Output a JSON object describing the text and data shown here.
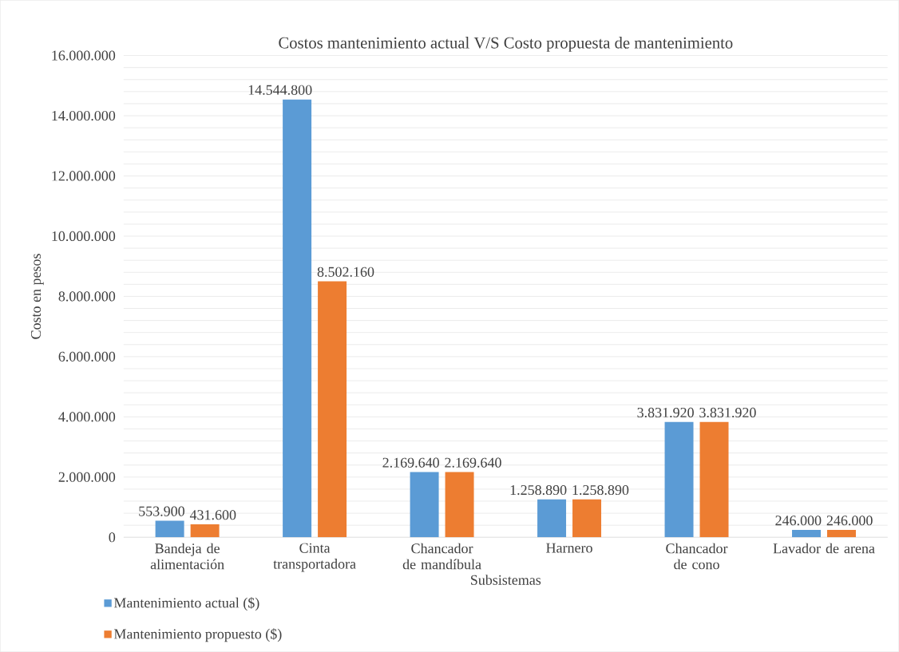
{
  "chart_data": {
    "type": "bar",
    "title": "Costos mantenimiento actual V/S Costo propuesta de mantenimiento",
    "xlabel": "Subsistemas",
    "ylabel": "Costo en pesos",
    "categories": [
      "Bandeja de alimentación",
      "Cinta transportadora",
      "Chancador de mandíbula",
      "Harnero",
      "Chancador de cono",
      "Lavador de arena"
    ],
    "series": [
      {
        "name": "Mantenimiento actual ($)",
        "color": "#5b9bd5",
        "values": [
          553900,
          14544800,
          2169640,
          1258890,
          3831920,
          246000
        ],
        "value_labels": [
          "553.900",
          "14.544.800",
          "2.169.640",
          "1.258.890",
          "3.831.920",
          "246.000"
        ]
      },
      {
        "name": "Mantenimiento propuesto  ($)",
        "color": "#ed7d31",
        "values": [
          431600,
          8502160,
          2169640,
          1258890,
          3831920,
          246000
        ],
        "value_labels": [
          "431.600",
          "8.502.160",
          "2.169.640",
          "1.258.890",
          "3.831.920",
          "246.000"
        ]
      }
    ],
    "ylim": [
      0,
      16000000
    ],
    "yticks": [
      {
        "value": 0,
        "label": "0"
      },
      {
        "value": 400000,
        "label": null
      },
      {
        "value": 800000,
        "label": null
      },
      {
        "value": 1200000,
        "label": null
      },
      {
        "value": 1600000,
        "label": null
      },
      {
        "value": 2000000,
        "label": "2.000.000"
      },
      {
        "value": 2400000,
        "label": null
      },
      {
        "value": 2800000,
        "label": null
      },
      {
        "value": 3200000,
        "label": null
      },
      {
        "value": 3600000,
        "label": null
      },
      {
        "value": 4000000,
        "label": "4.000.000"
      },
      {
        "value": 4400000,
        "label": null
      },
      {
        "value": 4800000,
        "label": null
      },
      {
        "value": 5200000,
        "label": null
      },
      {
        "value": 5600000,
        "label": null
      },
      {
        "value": 6000000,
        "label": "6.000.000"
      },
      {
        "value": 6400000,
        "label": null
      },
      {
        "value": 6800000,
        "label": null
      },
      {
        "value": 7200000,
        "label": null
      },
      {
        "value": 7600000,
        "label": null
      },
      {
        "value": 8000000,
        "label": "8.000.000"
      },
      {
        "value": 8400000,
        "label": null
      },
      {
        "value": 8800000,
        "label": null
      },
      {
        "value": 9200000,
        "label": null
      },
      {
        "value": 9600000,
        "label": null
      },
      {
        "value": 10000000,
        "label": "10.000.000"
      },
      {
        "value": 10400000,
        "label": null
      },
      {
        "value": 10800000,
        "label": null
      },
      {
        "value": 11200000,
        "label": null
      },
      {
        "value": 11600000,
        "label": null
      },
      {
        "value": 12000000,
        "label": "12.000.000"
      },
      {
        "value": 12400000,
        "label": null
      },
      {
        "value": 12800000,
        "label": null
      },
      {
        "value": 13200000,
        "label": null
      },
      {
        "value": 13600000,
        "label": null
      },
      {
        "value": 14000000,
        "label": "14.000.000"
      },
      {
        "value": 14400000,
        "label": null
      },
      {
        "value": 14800000,
        "label": null
      },
      {
        "value": 15200000,
        "label": null
      },
      {
        "value": 15600000,
        "label": null
      },
      {
        "value": 16000000,
        "label": "16.000.000"
      }
    ],
    "grid": "y",
    "legend": "bottom left"
  }
}
